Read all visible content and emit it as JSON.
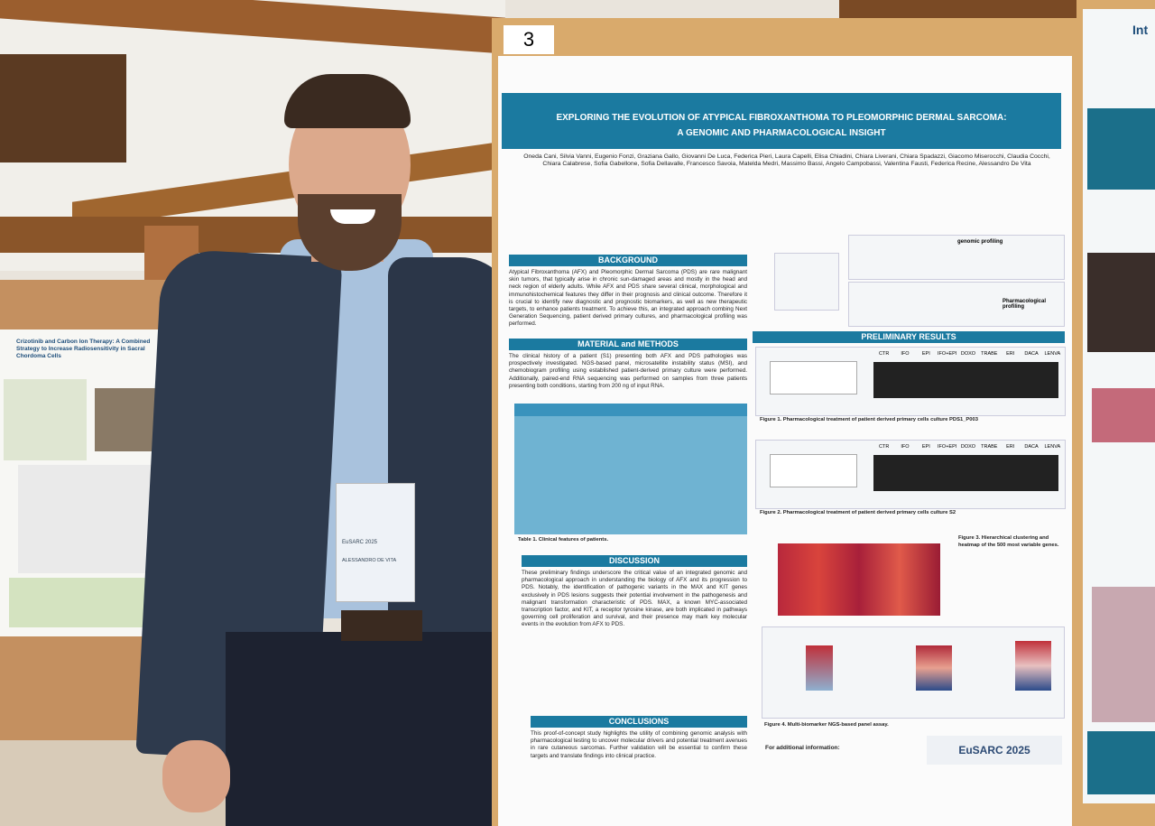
{
  "board_number": "3",
  "poster": {
    "title_line1": "EXPLORING THE EVOLUTION OF ATYPICAL FIBROXANTHOMA TO PLEOMORPHIC DERMAL SARCOMA:",
    "title_line2": "A GENOMIC AND PHARMACOLOGICAL INSIGHT",
    "authors": "Oneda Cani, Silvia Vanni, Eugenio Fonzi, Graziana Gallo, Giovanni De Luca, Federica Pieri, Laura Capelli, Elisa Chiadini, Chiara Liverani, Chiara Spadazzi, Giacomo Miserocchi, Claudia Cocchi, Chiara Calabrese, Sofia Gabellone, Sofia Dellavalle, Francesco Savoia, Matelda Medri, Massimo Bassi, Angelo Campobassi, Valentina Fausti, Federica Recine, Alessandro De Vita",
    "background_heading": "BACKGROUND",
    "background_text": "Atypical Fibroxanthoma (AFX) and Pleomorphic Dermal Sarcoma (PDS) are rare malignant skin tumors, that typically arise in chronic sun-damaged areas and mostly in the head and neck region of elderly adults. While AFX and PDS share several clinical, morphological and immunohistochemical features they differ in their prognosis and clinical outcome. Therefore it is crucial to identify new diagnostic and prognostic biomarkers, as well as new therapeutic targets, to enhance patients treatment. To achieve this, an integrated approach combing Next Generation Sequencing, patient derived primary cultures, and pharmacological profiling was performed.",
    "methods_heading": "MATERIAL and METHODS",
    "methods_text": "The clinical history of a patient (S1) presenting both AFX and PDS pathologies was prospectively investigated. NGS-based panel, microsatellite instability status (MSI), and chemobiogram profiling using established patient-derived primary culture were performed. Additionally, paired-end RNA sequencing was performed on samples from three patients presenting both conditions, starting from 200 ng of input RNA.",
    "table_caption": "Table 1. Clinical features of patients.",
    "discussion_heading": "DISCUSSION",
    "discussion_text": "These preliminary findings underscore the critical value of an integrated genomic and pharmacological approach in understanding the biology of AFX and its progression to PDS. Notably, the identification of pathogenic variants in the MAX and KIT genes exclusively in PDS lesions suggests their potential involvement in the pathogenesis and malignant transformation characteristic of PDS. MAX, a known MYC-associated transcription factor, and KIT, a receptor tyrosine kinase, are both implicated in pathways governing cell proliferation and survival, and their presence may mark key molecular events in the evolution from AFX to PDS.",
    "conclusions_heading": "CONCLUSIONS",
    "conclusions_text": "This proof-of-concept study highlights the utility of combining genomic analysis with pharmacological testing to uncover molecular drivers and potential treatment avenues in rare cutaneous sarcomas. Further validation will be essential to confirm these targets and translate findings into clinical practice.",
    "results_heading": "PRELIMINARY RESULTS",
    "genomic_label": "genomic profiling",
    "pharma_label": "Pharmacological profiling",
    "drugs": [
      "CTR",
      "IFO",
      "EPI",
      "IFO+EPI",
      "DOXO",
      "TRABE",
      "ERI",
      "DACA",
      "LENVA"
    ],
    "fig1_caption": "Figure 1. Pharmacological treatment of patient derived primary cells culture PDS1_P003",
    "fig2_caption": "Figure 2. Pharmacological treatment of patient derived primary cells culture S2",
    "fig3_caption": "Figure 3. Hierarchical clustering and heatmap of the 500 most variable genes.",
    "fig4_caption": "Figure 4. Multi-biomarker NGS-based panel assay.",
    "contact_heading": "For additional information:",
    "logo": "EuSARC 2025"
  },
  "left_poster": {
    "title": "Crizotinib and Carbon Ion Therapy: A Combined Strategy to Increase Radiosensitivity in Sacral Chordoma Cells"
  },
  "right_poster": {
    "title_fragment": "Int"
  },
  "badge": {
    "event": "EuSARC 2025",
    "name": "ALESSANDRO DE VITA"
  }
}
